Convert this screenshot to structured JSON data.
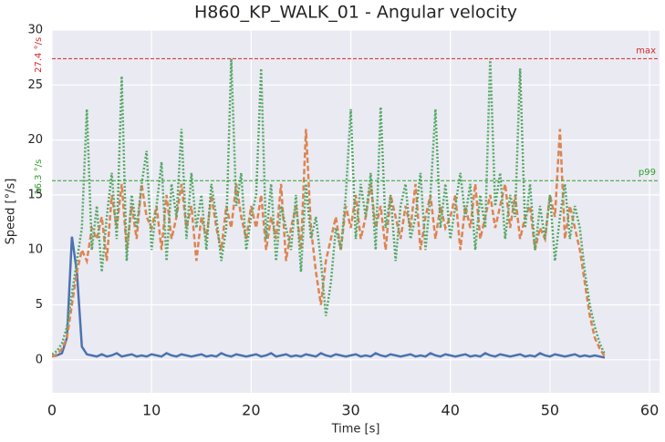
{
  "chart_data": {
    "type": "line",
    "title": "H860_KP_WALK_01 - Angular velocity",
    "xlabel": "Time [s]",
    "ylabel": "Speed [°/s]",
    "xlim": [
      0,
      61
    ],
    "ylim": [
      -3,
      30
    ],
    "xticks": [
      0,
      10,
      20,
      30,
      40,
      50,
      60
    ],
    "yticks": [
      0,
      5,
      10,
      15,
      20,
      25,
      30
    ],
    "grid": true,
    "x": [
      0,
      0.5,
      1,
      1.5,
      2,
      2.5,
      3,
      3.5,
      4,
      4.5,
      5,
      5.5,
      6,
      6.5,
      7,
      7.5,
      8,
      8.5,
      9,
      9.5,
      10,
      10.5,
      11,
      11.5,
      12,
      12.5,
      13,
      13.5,
      14,
      14.5,
      15,
      15.5,
      16,
      16.5,
      17,
      17.5,
      18,
      18.5,
      19,
      19.5,
      20,
      20.5,
      21,
      21.5,
      22,
      22.5,
      23,
      23.5,
      24,
      24.5,
      25,
      25.5,
      26,
      26.5,
      27,
      27.5,
      28,
      28.5,
      29,
      29.5,
      30,
      30.5,
      31,
      31.5,
      32,
      32.5,
      33,
      33.5,
      34,
      34.5,
      35,
      35.5,
      36,
      36.5,
      37,
      37.5,
      38,
      38.5,
      39,
      39.5,
      40,
      40.5,
      41,
      41.5,
      42,
      42.5,
      43,
      43.5,
      44,
      44.5,
      45,
      45.5,
      46,
      46.5,
      47,
      47.5,
      48,
      48.5,
      49,
      49.5,
      50,
      50.5,
      51,
      51.5,
      52,
      52.5,
      53,
      53.5,
      54,
      54.5,
      55,
      55.5
    ],
    "series": [
      {
        "color": "#4c72b0",
        "linestyle": "solid",
        "values": [
          0.3,
          0.4,
          0.6,
          2,
          11.2,
          8,
          1.2,
          0.5,
          0.4,
          0.3,
          0.5,
          0.3,
          0.4,
          0.6,
          0.3,
          0.4,
          0.5,
          0.3,
          0.4,
          0.3,
          0.5,
          0.4,
          0.3,
          0.6,
          0.4,
          0.3,
          0.5,
          0.4,
          0.3,
          0.4,
          0.5,
          0.3,
          0.4,
          0.3,
          0.6,
          0.4,
          0.3,
          0.5,
          0.4,
          0.3,
          0.4,
          0.5,
          0.3,
          0.4,
          0.6,
          0.3,
          0.4,
          0.5,
          0.3,
          0.4,
          0.3,
          0.5,
          0.4,
          0.3,
          0.6,
          0.4,
          0.3,
          0.5,
          0.4,
          0.3,
          0.4,
          0.5,
          0.3,
          0.4,
          0.3,
          0.6,
          0.4,
          0.3,
          0.5,
          0.4,
          0.3,
          0.4,
          0.5,
          0.3,
          0.4,
          0.3,
          0.6,
          0.4,
          0.3,
          0.5,
          0.4,
          0.3,
          0.4,
          0.5,
          0.3,
          0.4,
          0.3,
          0.6,
          0.4,
          0.3,
          0.5,
          0.4,
          0.3,
          0.4,
          0.5,
          0.3,
          0.4,
          0.3,
          0.6,
          0.4,
          0.3,
          0.5,
          0.4,
          0.3,
          0.4,
          0.5,
          0.3,
          0.4,
          0.3,
          0.4,
          0.3,
          0.2
        ]
      },
      {
        "color": "#dd8452",
        "linestyle": "dashed",
        "values": [
          0.3,
          0.5,
          1,
          2,
          5,
          8,
          10,
          9,
          12,
          11,
          13,
          9,
          15,
          12,
          16,
          10,
          14,
          11,
          16,
          13,
          12,
          14,
          10,
          15,
          11,
          13,
          16,
          12,
          14,
          9,
          13,
          11,
          15,
          12,
          10,
          14,
          12,
          16,
          13,
          11,
          14,
          12,
          15,
          10,
          13,
          11,
          16,
          9,
          12,
          14,
          10,
          21,
          12,
          8,
          5,
          9,
          11,
          13,
          10,
          14,
          12,
          15,
          11,
          13,
          16,
          12,
          14,
          10,
          15,
          13,
          11,
          14,
          12,
          16,
          10,
          13,
          15,
          11,
          14,
          12,
          13,
          15,
          10,
          14,
          12,
          16,
          11,
          13,
          15,
          12,
          14,
          16,
          12,
          15,
          11,
          13,
          14,
          10,
          12,
          11,
          15,
          13,
          21,
          11,
          14,
          12,
          10,
          7,
          4,
          2,
          1,
          0.3
        ]
      },
      {
        "color": "#55a868",
        "linestyle": "dotted",
        "values": [
          0.5,
          0.8,
          1.5,
          3,
          6,
          9,
          12,
          22.8,
          10,
          14,
          8,
          13,
          17,
          11,
          25.8,
          9,
          15,
          12,
          16,
          19,
          10,
          14,
          18,
          9,
          16,
          13,
          21,
          11,
          17,
          12,
          15,
          10,
          16,
          13,
          9,
          12,
          27.4,
          14,
          17,
          10,
          13,
          15,
          26.5,
          11,
          16,
          9,
          14,
          12,
          10,
          15,
          8,
          16,
          11,
          13,
          9,
          4,
          7,
          12,
          10,
          15,
          22.8,
          11,
          16,
          13,
          17,
          10,
          23,
          12,
          15,
          9,
          14,
          16,
          11,
          13,
          17,
          10,
          15,
          22.8,
          12,
          16,
          11,
          14,
          17,
          13,
          16,
          10,
          15,
          12,
          27.4,
          14,
          17,
          11,
          15,
          13,
          26.5,
          12,
          16,
          10,
          14,
          11,
          15,
          9,
          13,
          16,
          11,
          14,
          12,
          8,
          5,
          3,
          1.5,
          0.5
        ]
      }
    ],
    "hlines": [
      {
        "value": 27.4,
        "label": "27.4 °/s",
        "name": "max",
        "color": "#d62728"
      },
      {
        "value": 16.3,
        "label": "16.3 °/s",
        "name": "p99",
        "color": "#2ca02c"
      }
    ]
  }
}
